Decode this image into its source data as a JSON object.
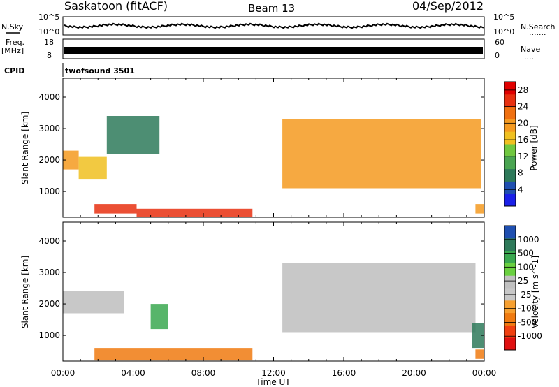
{
  "header": {
    "station": "Saskatoon (fitACF)",
    "beam": "Beam 13",
    "date": "04/Sep/2012"
  },
  "top_panels": {
    "nsky_label": "N.Sky",
    "nsearch_label": "N.Search",
    "nsearch_dots": ".......",
    "nsky_tick_hi": "10^5",
    "nsky_tick_lo": "10^0",
    "nsearch_tick_hi": "10^5",
    "nsearch_tick_lo": "10^0",
    "freq_label": "Freq.",
    "freq_units": "[MHz]",
    "freq_tick_hi": "18",
    "freq_tick_lo": "8",
    "nave_label": "Nave",
    "nave_dots": "....",
    "nave_tick_hi": "60",
    "nave_tick_lo": "0",
    "cpid_label": "CPID",
    "cpid_value": "twofsound 3501"
  },
  "colors": {
    "power_scale": [
      "#1a20e8",
      "#1f4fb0",
      "#2e7a5a",
      "#4aa552",
      "#70c840",
      "#f0c020",
      "#f59a20",
      "#f07010",
      "#e83010",
      "#e00000"
    ],
    "velocity_scale": [
      "#e01010",
      "#f04010",
      "#f07a10",
      "#f7a030",
      "#c8c8c8",
      "#c0c0c0",
      "#6ad040",
      "#3aa850",
      "#2e7a5a",
      "#1f4fb0"
    ],
    "ground_scatter": "#bebebe"
  },
  "chart_data": [
    {
      "type": "heatmap",
      "title": "Power",
      "colorbar_label": "Power [dB]",
      "colorbar_ticks": [
        "4",
        "8",
        "12",
        "16",
        "20",
        "24",
        "28"
      ],
      "ylabel": "Slant Range [km]",
      "ylim": [
        180,
        4600
      ],
      "yticks": [
        "1000",
        "2000",
        "3000",
        "4000"
      ],
      "xlim": [
        "00:00",
        "24:00"
      ],
      "xticks": [
        "00:00",
        "04:00",
        "08:00",
        "12:00",
        "16:00",
        "20:00",
        "00:00"
      ],
      "regions": [
        {
          "time": [
            0.0,
            0.9
          ],
          "range": [
            1700,
            2300
          ],
          "power_db": 20
        },
        {
          "time": [
            0.9,
            2.5
          ],
          "range": [
            1400,
            2100
          ],
          "power_db": 16
        },
        {
          "time": [
            2.5,
            5.5
          ],
          "range": [
            2200,
            3400
          ],
          "power_db": 8
        },
        {
          "time": [
            1.8,
            4.2
          ],
          "range": [
            300,
            600
          ],
          "power_db": 26
        },
        {
          "time": [
            4.2,
            10.8
          ],
          "range": [
            200,
            450
          ],
          "power_db": 24
        },
        {
          "time": [
            12.5,
            23.8
          ],
          "range": [
            1100,
            3300
          ],
          "power_db": 18
        },
        {
          "time": [
            23.5,
            24.0
          ],
          "range": [
            300,
            600
          ],
          "power_db": 20
        }
      ]
    },
    {
      "type": "heatmap",
      "title": "Velocity",
      "colorbar_label": "Velocity [m s^-1]",
      "colorbar_ticks": [
        "1000",
        "500",
        "100",
        "25",
        "-25",
        "-100",
        "-500",
        "-1000"
      ],
      "ylabel": "Slant Range [km]",
      "xlabel": "Time UT",
      "ylim": [
        180,
        4600
      ],
      "yticks": [
        "1000",
        "2000",
        "3000",
        "4000"
      ],
      "xlim": [
        "00:00",
        "24:00"
      ],
      "xticks": [
        "00:00",
        "04:00",
        "08:00",
        "12:00",
        "16:00",
        "20:00",
        "00:00"
      ],
      "regions": [
        {
          "time": [
            0.0,
            3.5
          ],
          "range": [
            1700,
            2400
          ],
          "velocity": 0
        },
        {
          "time": [
            1.8,
            10.8
          ],
          "range": [
            200,
            600
          ],
          "velocity": -150
        },
        {
          "time": [
            5.0,
            6.0
          ],
          "range": [
            1200,
            2000
          ],
          "velocity": 300
        },
        {
          "time": [
            12.5,
            23.5
          ],
          "range": [
            1100,
            3300
          ],
          "velocity": 0
        },
        {
          "time": [
            23.3,
            24.0
          ],
          "range": [
            600,
            1400
          ],
          "velocity": 600
        },
        {
          "time": [
            23.5,
            24.0
          ],
          "range": [
            250,
            550
          ],
          "velocity": -300
        }
      ]
    }
  ],
  "x_axis": {
    "title": "Time UT",
    "ticks": [
      "00:00",
      "04:00",
      "08:00",
      "12:00",
      "16:00",
      "20:00",
      "00:00"
    ]
  }
}
